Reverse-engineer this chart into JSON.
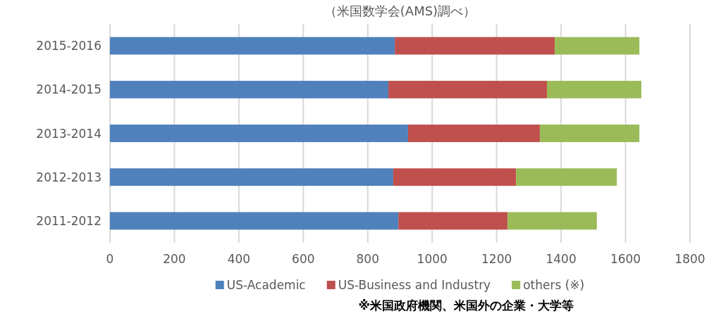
{
  "chart_data": {
    "type": "bar",
    "orientation": "horizontal",
    "stacked": true,
    "title": "（米国数学会(AMS)調べ）",
    "categories": [
      "2015-2016",
      "2014-2015",
      "2013-2014",
      "2012-2013",
      "2011-2012"
    ],
    "series": [
      {
        "name": "US-Academic",
        "color": "#4f81bd",
        "values": [
          884,
          864,
          925,
          879,
          895
        ]
      },
      {
        "name": "US-Business and Industry",
        "color": "#c0504d",
        "values": [
          496,
          492,
          409,
          381,
          339
        ]
      },
      {
        "name": "others (※)",
        "color": "#9bbb59",
        "values": [
          263,
          293,
          309,
          313,
          277
        ]
      }
    ],
    "xlim": [
      0,
      1800
    ],
    "xticks": [
      0,
      200,
      400,
      600,
      800,
      1000,
      1200,
      1400,
      1600,
      1800
    ],
    "grid": "x",
    "legend": "bottom",
    "annotations": [
      "※米国政府機関、米国外の企業・大学等"
    ]
  }
}
